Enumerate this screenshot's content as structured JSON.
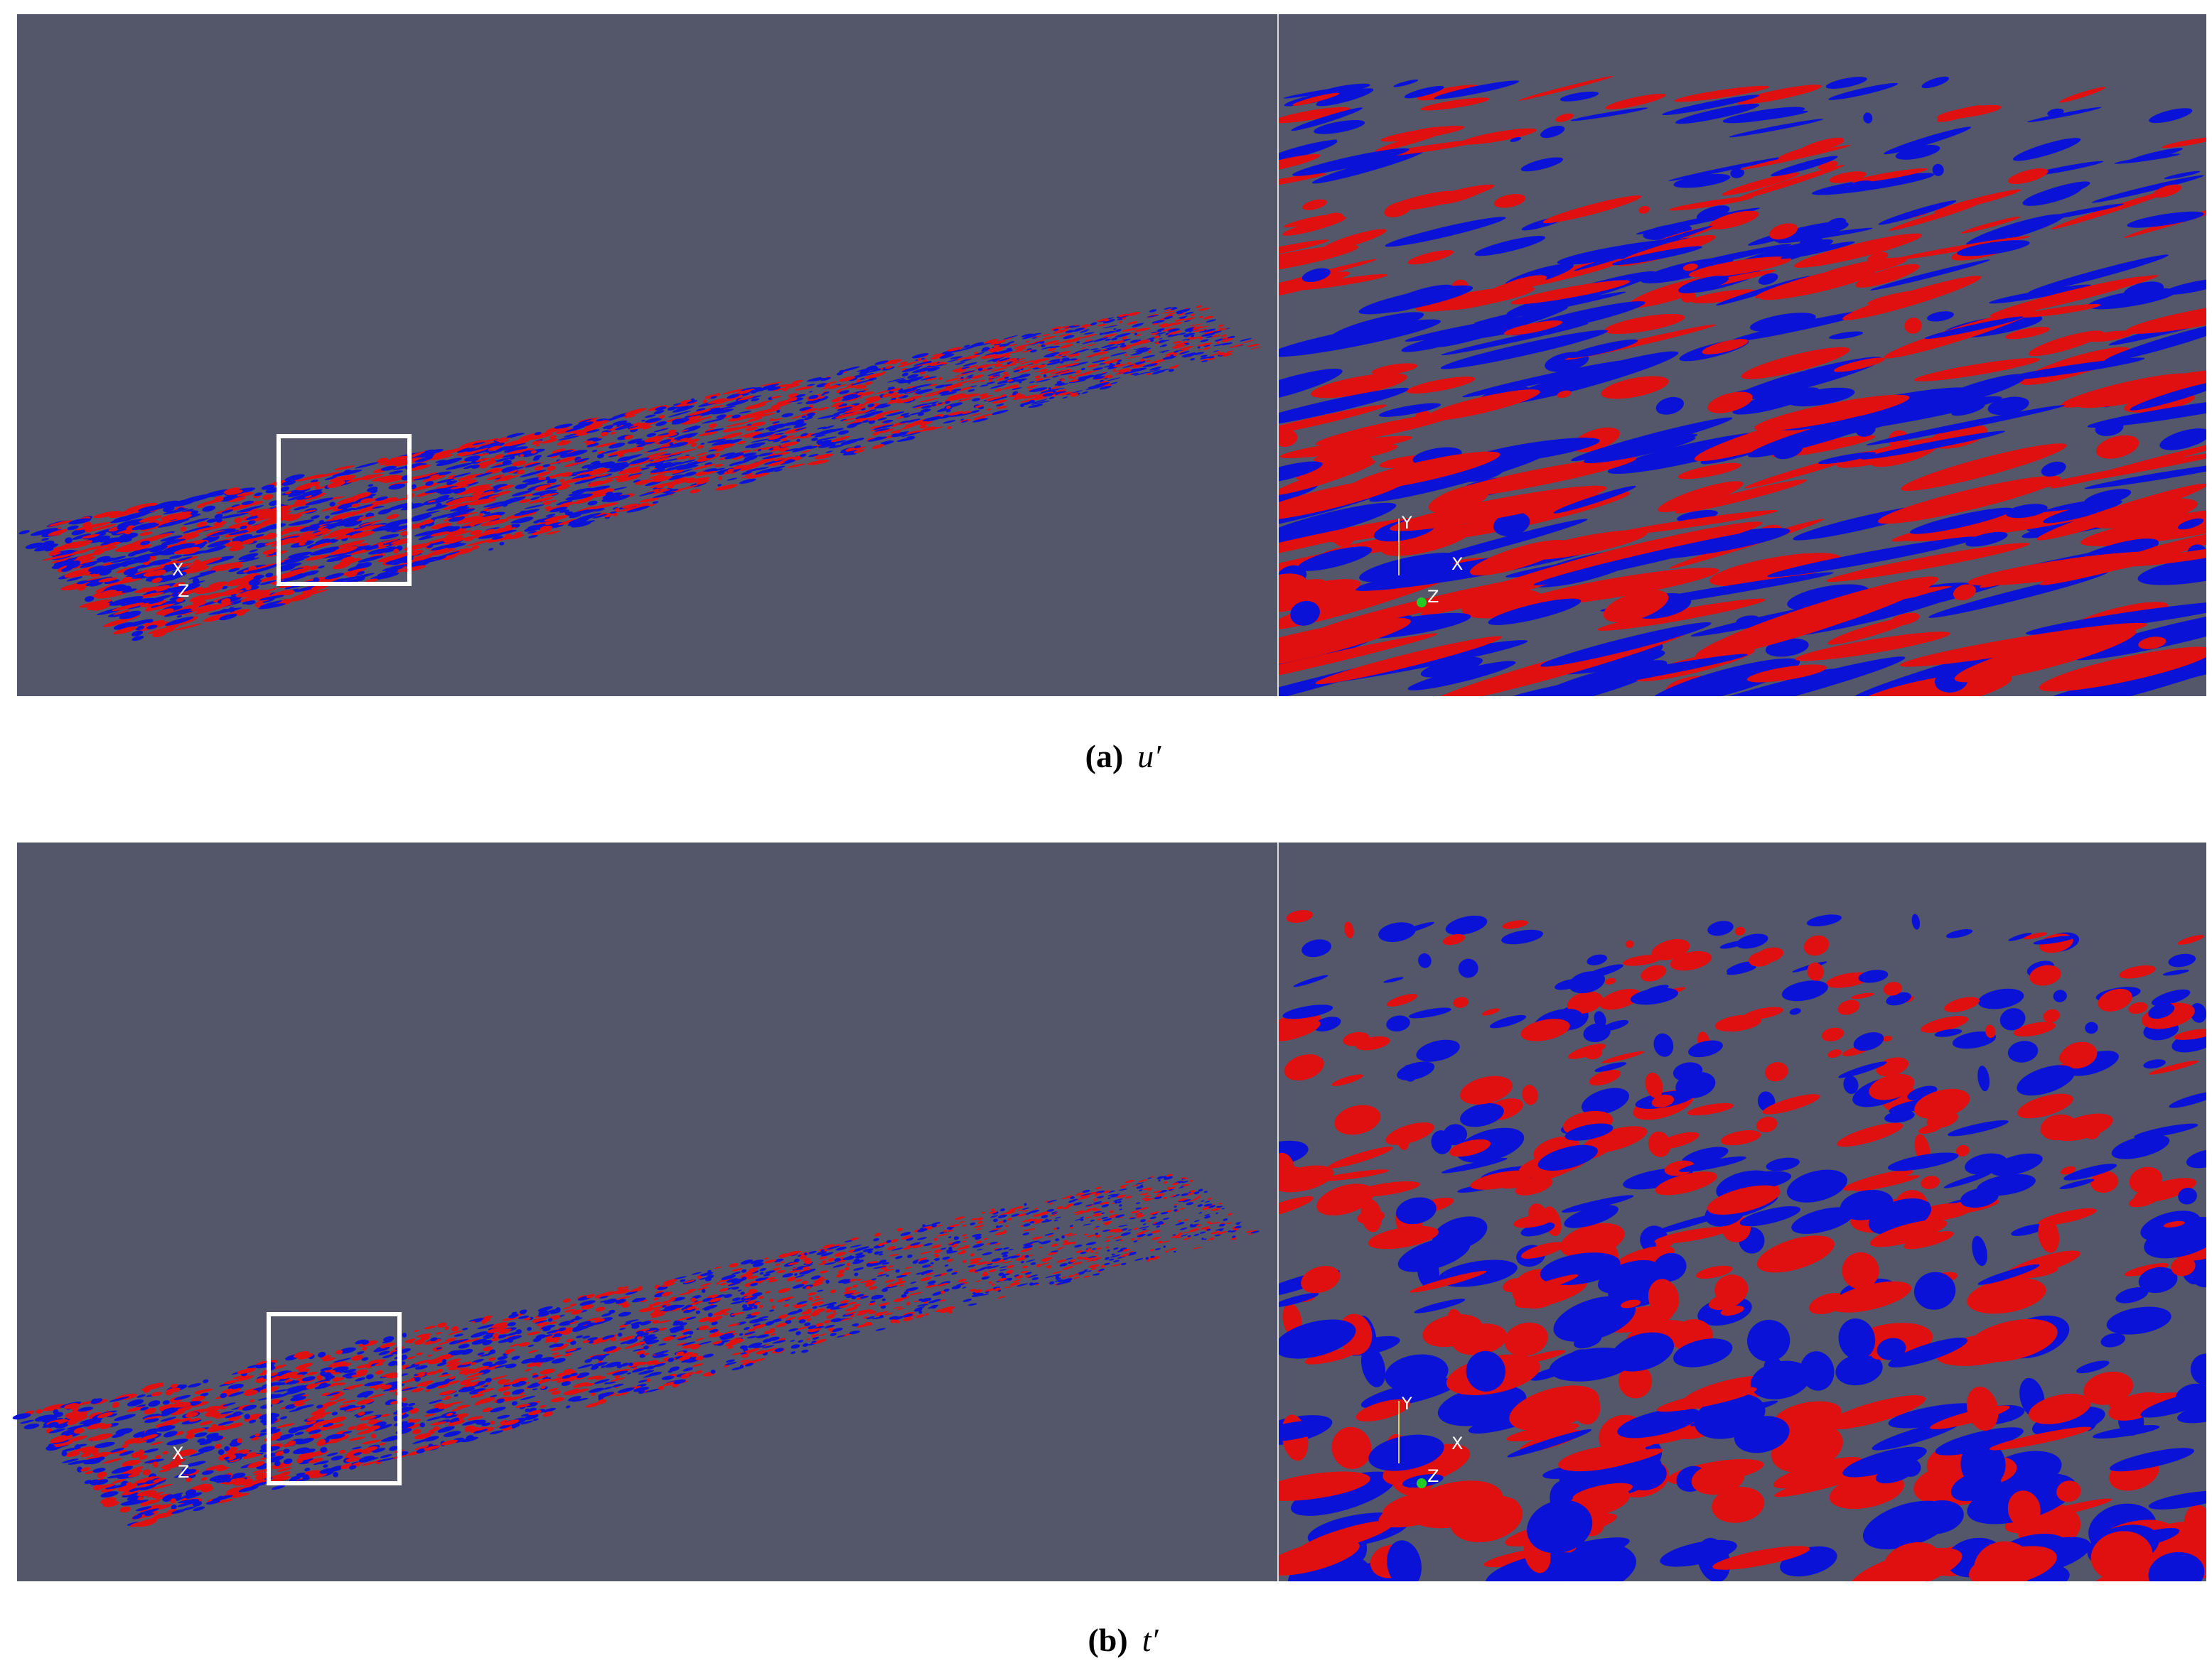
{
  "figure": {
    "panels": [
      {
        "label": "(a)",
        "variable": "u′",
        "overview_axes": [
          "X",
          "Z"
        ],
        "zoom_axes": [
          "Y",
          "X",
          "Z"
        ]
      },
      {
        "label": "(b)",
        "variable": "t′",
        "overview_axes": [
          "X",
          "Z"
        ],
        "zoom_axes": [
          "Y",
          "X",
          "Z"
        ]
      }
    ]
  }
}
